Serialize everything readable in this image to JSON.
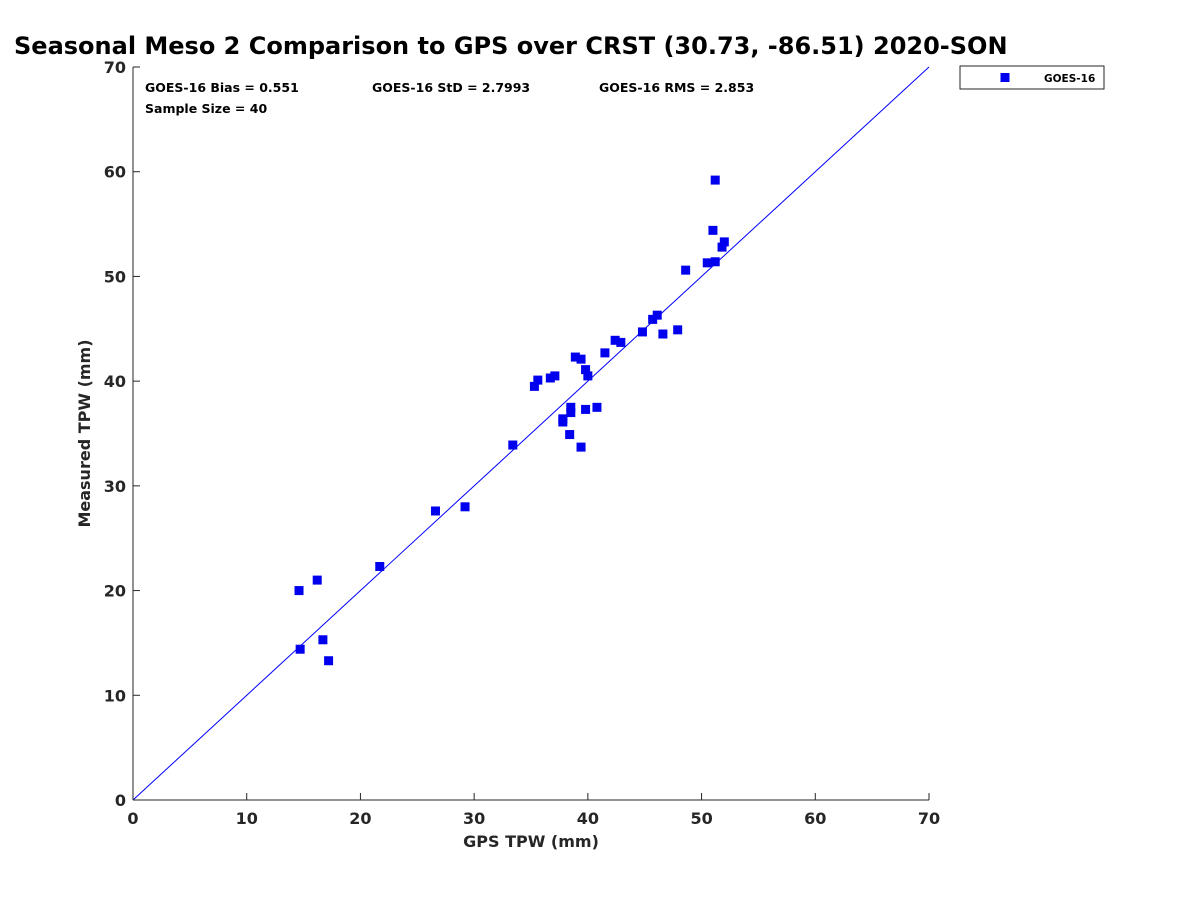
{
  "chart_data": {
    "type": "scatter",
    "title": "Seasonal Meso 2 Comparison to GPS over CRST (30.73, -86.51) 2020-SON",
    "xlabel": "GPS TPW (mm)",
    "ylabel": "Measured TPW (mm)",
    "xlim": [
      0,
      70
    ],
    "ylim": [
      0,
      70
    ],
    "xticks": [
      "0",
      "10",
      "20",
      "30",
      "40",
      "50",
      "60",
      "70"
    ],
    "yticks": [
      "0",
      "10",
      "20",
      "30",
      "40",
      "50",
      "60",
      "70"
    ],
    "grid": false,
    "legend_position": "outside-top-right",
    "reference_line": {
      "from": [
        0,
        0
      ],
      "to": [
        70,
        70
      ],
      "color": "#0000ff"
    },
    "stats": {
      "bias": "GOES-16 Bias = 0.551",
      "std": "GOES-16 StD = 2.7993",
      "rms": "GOES-16 RMS = 2.853",
      "sample_size": "Sample Size = 40"
    },
    "series": [
      {
        "name": "GOES-16",
        "color": "#0000ee",
        "marker": "square",
        "points": [
          [
            14.6,
            20.0
          ],
          [
            14.7,
            14.4
          ],
          [
            16.2,
            21.0
          ],
          [
            16.7,
            15.3
          ],
          [
            17.2,
            13.3
          ],
          [
            21.7,
            22.3
          ],
          [
            26.6,
            27.6
          ],
          [
            29.2,
            28.0
          ],
          [
            33.4,
            33.9
          ],
          [
            35.3,
            39.5
          ],
          [
            35.6,
            40.1
          ],
          [
            36.7,
            40.3
          ],
          [
            37.1,
            40.5
          ],
          [
            37.8,
            36.1
          ],
          [
            37.8,
            36.4
          ],
          [
            38.4,
            34.9
          ],
          [
            38.5,
            37.0
          ],
          [
            38.5,
            37.5
          ],
          [
            38.9,
            42.3
          ],
          [
            39.4,
            33.7
          ],
          [
            39.4,
            42.1
          ],
          [
            39.8,
            37.3
          ],
          [
            39.8,
            41.1
          ],
          [
            40.0,
            40.5
          ],
          [
            40.8,
            37.5
          ],
          [
            41.5,
            42.7
          ],
          [
            42.4,
            43.9
          ],
          [
            42.9,
            43.7
          ],
          [
            44.8,
            44.7
          ],
          [
            45.7,
            45.9
          ],
          [
            46.1,
            46.3
          ],
          [
            46.6,
            44.5
          ],
          [
            47.9,
            44.9
          ],
          [
            48.6,
            50.6
          ],
          [
            50.5,
            51.3
          ],
          [
            51.0,
            54.4
          ],
          [
            51.2,
            51.4
          ],
          [
            51.2,
            59.2
          ],
          [
            51.8,
            52.8
          ],
          [
            52.0,
            53.3
          ]
        ]
      }
    ]
  }
}
